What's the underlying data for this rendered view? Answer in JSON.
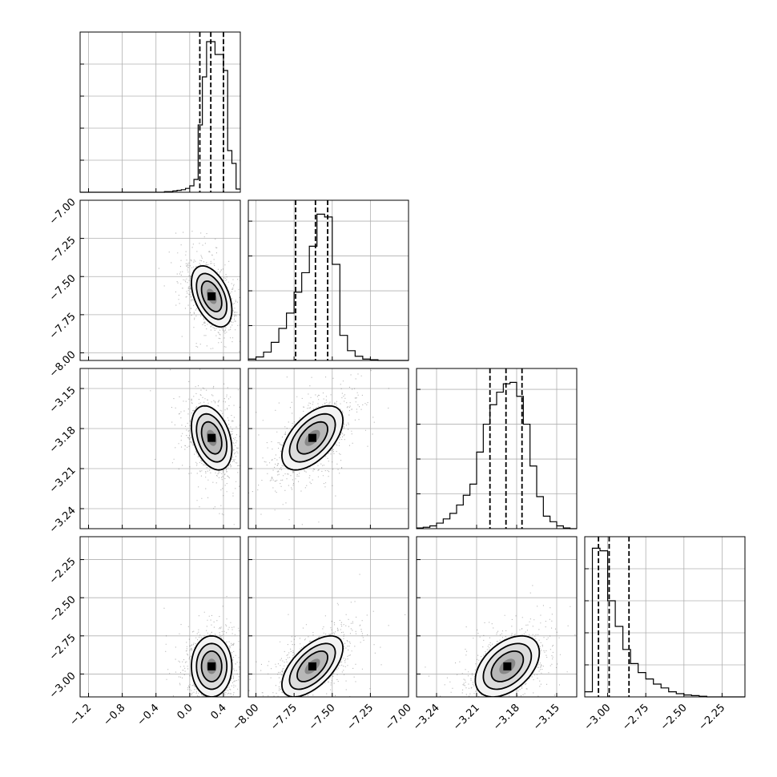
{
  "chart_data": {
    "type": "corner",
    "grid": true,
    "parameters": [
      {
        "range": [
          -1.3,
          0.6
        ],
        "ticks": [
          -1.2,
          -0.8,
          -0.4,
          0.0,
          0.4
        ],
        "tick_labels": [
          "−1.2",
          "−0.8",
          "−0.4",
          "0.0",
          "0.4"
        ],
        "quantiles": [
          0.12,
          0.25,
          0.4
        ],
        "hist_edges": [
          -1.3,
          -1.25,
          -1.2,
          -1.15,
          -1.1,
          -1.05,
          -1.0,
          -0.95,
          -0.9,
          -0.85,
          -0.8,
          -0.75,
          -0.7,
          -0.65,
          -0.6,
          -0.55,
          -0.5,
          -0.45,
          -0.4,
          -0.35,
          -0.3,
          -0.25,
          -0.2,
          -0.15,
          -0.1,
          -0.05,
          0.0,
          0.05,
          0.1,
          0.15,
          0.2,
          0.25,
          0.3,
          0.35,
          0.4,
          0.45,
          0.5,
          0.55,
          0.6
        ],
        "hist_counts": [
          0,
          0,
          0,
          0,
          0,
          0,
          0,
          0,
          0,
          0,
          0,
          0,
          0,
          0,
          0,
          0,
          0,
          0,
          0,
          0,
          1,
          1,
          2,
          3,
          4,
          6,
          10,
          20,
          105,
          180,
          235,
          235,
          215,
          215,
          190,
          65,
          45,
          5
        ],
        "hist_ylim": [
          0,
          250
        ],
        "mean": 0.26,
        "sd": 0.12
      },
      {
        "range": [
          -8.05,
          -7.0
        ],
        "ticks": [
          -8.0,
          -7.75,
          -7.5,
          -7.25,
          -7.0
        ],
        "tick_labels": [
          "−8.00",
          "−7.75",
          "−7.50",
          "−7.25",
          "−7.00"
        ],
        "quantiles": [
          -7.74,
          -7.61,
          -7.53
        ],
        "hist_edges": [
          -8.05,
          -8.0,
          -7.95,
          -7.9,
          -7.85,
          -7.8,
          -7.75,
          -7.7,
          -7.65,
          -7.6,
          -7.55,
          -7.5,
          -7.45,
          -7.4,
          -7.35,
          -7.3,
          -7.25,
          -7.2,
          -7.15,
          -7.1,
          -7.05,
          -7.0
        ],
        "hist_counts": [
          2,
          5,
          12,
          26,
          46,
          68,
          98,
          126,
          164,
          210,
          206,
          138,
          36,
          14,
          6,
          2,
          1,
          0,
          0,
          0,
          0
        ],
        "hist_ylim": [
          0,
          230
        ],
        "mean": -7.63,
        "sd": 0.1
      },
      {
        "range": [
          -3.255,
          -3.135
        ],
        "ticks": [
          -3.24,
          -3.21,
          -3.18,
          -3.15
        ],
        "tick_labels": [
          "−3.24",
          "−3.21",
          "−3.18",
          "−3.15"
        ],
        "quantiles": [
          -3.2,
          -3.188,
          -3.176
        ],
        "hist_edges": [
          -3.255,
          -3.25,
          -3.245,
          -3.24,
          -3.235,
          -3.23,
          -3.225,
          -3.22,
          -3.215,
          -3.21,
          -3.205,
          -3.2,
          -3.195,
          -3.19,
          -3.185,
          -3.18,
          -3.175,
          -3.17,
          -3.165,
          -3.16,
          -3.155,
          -3.15,
          -3.145,
          -3.14,
          -3.135
        ],
        "hist_counts": [
          1,
          2,
          4,
          8,
          14,
          22,
          34,
          48,
          64,
          110,
          150,
          178,
          196,
          208,
          210,
          190,
          150,
          90,
          46,
          18,
          10,
          4,
          1,
          0
        ],
        "hist_ylim": [
          0,
          230
        ],
        "mean": -3.187,
        "sd": 0.012
      },
      {
        "range": [
          -3.15,
          -2.1
        ],
        "ticks": [
          -3.0,
          -2.75,
          -2.5,
          -2.25
        ],
        "tick_labels": [
          "−3.00",
          "−2.75",
          "−2.50",
          "−2.25"
        ],
        "quantiles": [
          -3.06,
          -2.99,
          -2.86
        ],
        "hist_edges": [
          -3.15,
          -3.1,
          -3.05,
          -3.0,
          -2.95,
          -2.9,
          -2.85,
          -2.8,
          -2.75,
          -2.7,
          -2.65,
          -2.6,
          -2.55,
          -2.5,
          -2.45,
          -2.4,
          -2.35,
          -2.3,
          -2.25,
          -2.2,
          -2.15,
          -2.1
        ],
        "hist_counts": [
          8,
          232,
          228,
          150,
          110,
          74,
          52,
          38,
          28,
          20,
          14,
          8,
          5,
          3,
          2,
          1,
          0,
          0,
          0,
          0,
          0
        ],
        "hist_ylim": [
          0,
          250
        ],
        "mean": -2.95,
        "sd": 0.1
      }
    ],
    "correlations": {
      "1,0": -0.45,
      "2,0": -0.35,
      "2,1": 0.55,
      "3,0": 0.0,
      "3,1": 0.6,
      "3,2": 0.45
    },
    "contour_levels_sigma": [
      0.5,
      1.0,
      1.5,
      2.0
    ]
  }
}
